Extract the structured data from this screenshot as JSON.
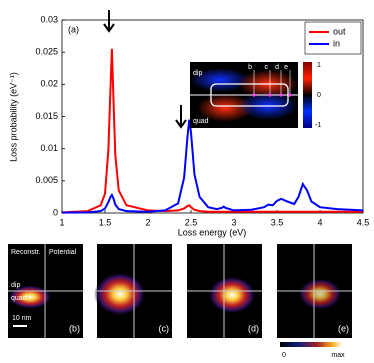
{
  "chart_data": {
    "type": "line",
    "panel_label": "(a)",
    "xlabel": "Loss energy (eV)",
    "ylabel": "Loss probability (eV⁻¹)",
    "xlim": [
      1,
      4.5
    ],
    "xticks": [
      1,
      1.5,
      2,
      2.5,
      3,
      3.5,
      4,
      4.5
    ],
    "ylim": [
      0,
      0.03
    ],
    "yticks": [
      0,
      0.005,
      0.01,
      0.015,
      0.02,
      0.025,
      0.03
    ],
    "legend": "upper right",
    "x": [
      1.0,
      1.3,
      1.45,
      1.5,
      1.54,
      1.56,
      1.58,
      1.6,
      1.62,
      1.66,
      1.75,
      2.0,
      2.2,
      2.35,
      2.42,
      2.46,
      2.48,
      2.5,
      2.54,
      2.6,
      2.7,
      2.8,
      2.86,
      2.88,
      2.9,
      3.0,
      3.2,
      3.35,
      3.4,
      3.45,
      3.5,
      3.55,
      3.6,
      3.7,
      3.75,
      3.8,
      3.85,
      3.9,
      4.0,
      4.2,
      4.5
    ],
    "series": [
      {
        "name": "out",
        "color": "#ff0000",
        "values": [
          0.0001,
          0.0003,
          0.0012,
          0.003,
          0.01,
          0.018,
          0.0255,
          0.017,
          0.009,
          0.0035,
          0.0012,
          0.0004,
          0.0003,
          0.0004,
          0.0007,
          0.0011,
          0.0012,
          0.0009,
          0.0005,
          0.0003,
          0.0002,
          0.0002,
          0.0002,
          0.0002,
          0.0002,
          0.0002,
          0.0002,
          0.0002,
          0.0002,
          0.0002,
          0.0002,
          0.0002,
          0.0002,
          0.0002,
          0.0002,
          0.0002,
          0.0002,
          0.0002,
          0.0002,
          0.0002,
          0.0002
        ]
      },
      {
        "name": "in",
        "color": "#0000ff",
        "values": [
          5e-05,
          0.0001,
          0.0003,
          0.0007,
          0.0017,
          0.0024,
          0.0028,
          0.0022,
          0.0013,
          0.0006,
          0.0003,
          0.0002,
          0.0004,
          0.0015,
          0.0055,
          0.012,
          0.0145,
          0.0125,
          0.006,
          0.0025,
          0.0009,
          0.0006,
          0.0008,
          0.001,
          0.0008,
          0.0004,
          0.0005,
          0.0009,
          0.0013,
          0.0012,
          0.0019,
          0.0022,
          0.0019,
          0.0014,
          0.0025,
          0.0045,
          0.0035,
          0.0018,
          0.0009,
          0.0006,
          0.0004
        ]
      }
    ],
    "inset": {
      "top_label": "dip",
      "bottom_label": "quad",
      "markers": [
        "b",
        "c",
        "d",
        "e"
      ],
      "colorbar_ticks": [
        "1",
        "0",
        "-1"
      ]
    }
  },
  "panels": [
    {
      "label": "(b)",
      "left_title": "Reconstr.",
      "right_title": "Potential",
      "top_label": "dip",
      "bottom_label": "quad",
      "scale": "10 nm"
    },
    {
      "label": "(c)"
    },
    {
      "label": "(d)"
    },
    {
      "label": "(e)"
    }
  ],
  "colorbar": {
    "min_label": "0",
    "max_label": "max"
  }
}
